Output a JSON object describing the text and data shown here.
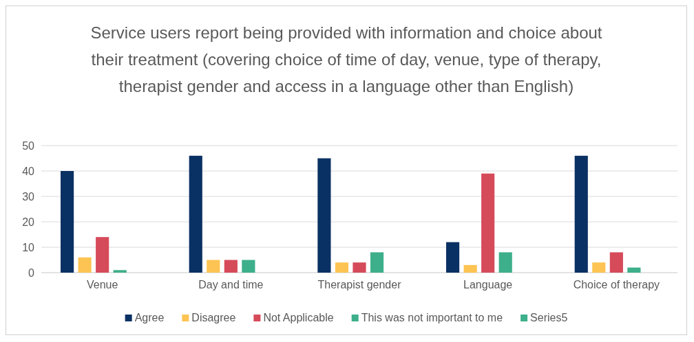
{
  "chart_data": {
    "type": "bar",
    "title": "Service users report being provided with information and choice about their treatment (covering choice of time of day, venue, type of therapy, therapist gender and access in a language other than English)",
    "categories": [
      "Venue",
      "Day and time",
      "Therapist gender",
      "Language",
      "Choice of therapy"
    ],
    "series": [
      {
        "name": "Agree",
        "color": "#0a3163",
        "values": [
          40,
          46,
          45,
          12,
          46
        ]
      },
      {
        "name": "Disagree",
        "color": "#fdc453",
        "values": [
          6,
          5,
          4,
          3,
          4
        ]
      },
      {
        "name": "Not Applicable",
        "color": "#d64b5a",
        "values": [
          14,
          5,
          4,
          39,
          8
        ]
      },
      {
        "name": "This was not important to me",
        "color": "#3daf8a",
        "values": [
          1,
          5,
          8,
          8,
          2
        ]
      },
      {
        "name": "Series5",
        "color": "#3daf8a",
        "values": [
          null,
          null,
          null,
          null,
          null
        ]
      }
    ],
    "ylim": [
      0,
      50
    ],
    "yticks": [
      0,
      10,
      20,
      30,
      40,
      50
    ],
    "grid": "y",
    "legend": "bottom"
  }
}
